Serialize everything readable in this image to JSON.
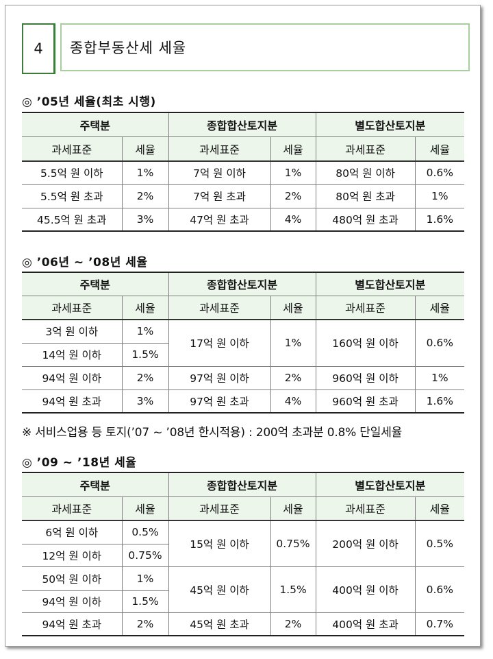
{
  "header": {
    "number": "4",
    "title": "종합부동산세 세율"
  },
  "column_groups": [
    "주택분",
    "종합합산토지분",
    "별도합산토지분"
  ],
  "column_headers": [
    "과세표준",
    "세율",
    "과세표준",
    "세율",
    "과세표준",
    "세율"
  ],
  "section1": {
    "title": "◎ ’05년 세율(최초 시행)",
    "rows": [
      [
        "5.5억 원 이하",
        "1%",
        "7억 원 이하",
        "1%",
        "80억 원 이하",
        "0.6%"
      ],
      [
        "5.5억 원 초과",
        "2%",
        "7억 원 초과",
        "2%",
        "80억 원 초과",
        "1%"
      ],
      [
        "45.5억 원 초과",
        "3%",
        "47억 원 초과",
        "4%",
        "480억 원 초과",
        "1.6%"
      ]
    ]
  },
  "section2": {
    "title": "◎ ’06년 ~ ’08년 세율",
    "house": [
      [
        "3억 원 이하",
        "1%"
      ],
      [
        "14억 원 이하",
        "1.5%"
      ],
      [
        "94억 원 이하",
        "2%"
      ],
      [
        "94억 원 초과",
        "3%"
      ]
    ],
    "land": [
      [
        "17억 원 이하",
        "1%",
        "160억 원 이하",
        "0.6%"
      ],
      [
        "97억 원 이하",
        "2%",
        "960억 원 이하",
        "1%"
      ],
      [
        "97억 원 초과",
        "4%",
        "960억 원 초과",
        "1.6%"
      ]
    ],
    "note": "※ 서비스업용 등 토지(’07 ~ ’08년 한시적용) : 200억 초과분 0.8% 단일세율"
  },
  "section3": {
    "title": "◎ ’09  ~  ’18년 세율",
    "house": [
      [
        "6억 원 이하",
        "0.5%"
      ],
      [
        "12억 원 이하",
        "0.75%"
      ],
      [
        "50억 원 이하",
        "1%"
      ],
      [
        "94억 원 이하",
        "1.5%"
      ],
      [
        "94억 원 초과",
        "2%"
      ]
    ],
    "land": [
      [
        "15억 원 이하",
        "0.75%",
        "200억 원 이하",
        "0.5%"
      ],
      [
        "45억 원 이하",
        "1.5%",
        "400억 원 이하",
        "0.6%"
      ],
      [
        "45억 원 초과",
        "2%",
        "400억 원 초과",
        "0.7%"
      ]
    ]
  }
}
